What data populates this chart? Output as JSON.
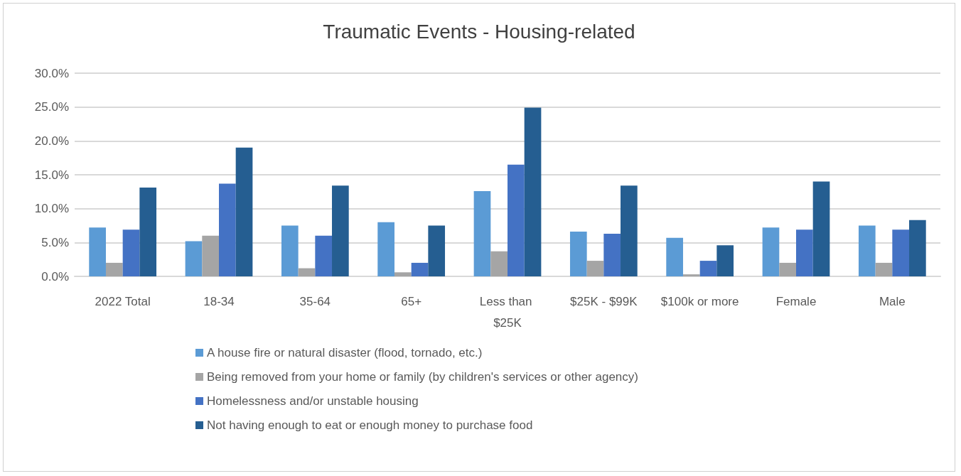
{
  "chart_data": {
    "type": "bar",
    "title": "Traumatic Events - Housing-related",
    "categories": [
      "2022 Total",
      "18-34",
      "35-64",
      "65+",
      "Less than $25K",
      "$25K - $99K",
      "$100k or more",
      "Female",
      "Male"
    ],
    "series": [
      {
        "name": "A house fire or natural disaster (flood, tornado, etc.)",
        "color": "#5b9bd5",
        "values": [
          7.2,
          5.2,
          7.5,
          8.0,
          12.6,
          6.6,
          5.7,
          7.2,
          7.5
        ]
      },
      {
        "name": "Being removed from your home or family (by children's services or other agency)",
        "color": "#a5a5a5",
        "values": [
          2.0,
          6.0,
          1.2,
          0.6,
          3.7,
          2.3,
          0.3,
          2.0,
          2.0
        ]
      },
      {
        "name": "Homelessness and/or unstable housing",
        "color": "#4472c4",
        "values": [
          6.9,
          13.7,
          6.0,
          2.0,
          16.5,
          6.3,
          2.3,
          6.9,
          6.9
        ]
      },
      {
        "name": "Not having enough to eat or enough money to purchase food",
        "color": "#255e91",
        "values": [
          13.1,
          19.0,
          13.4,
          7.5,
          24.9,
          13.4,
          4.6,
          14.0,
          8.3
        ]
      }
    ],
    "ylim": [
      0,
      30
    ],
    "yticks": [
      {
        "value": 0,
        "label": "0.0%"
      },
      {
        "value": 5,
        "label": "5.0%"
      },
      {
        "value": 10,
        "label": "10.0%"
      },
      {
        "value": 15,
        "label": "15.0%"
      },
      {
        "value": 20,
        "label": "20.0%"
      },
      {
        "value": 25,
        "label": "25.0%"
      },
      {
        "value": 30,
        "label": "30.0%"
      }
    ],
    "grid": "y",
    "legend": "bottom"
  }
}
